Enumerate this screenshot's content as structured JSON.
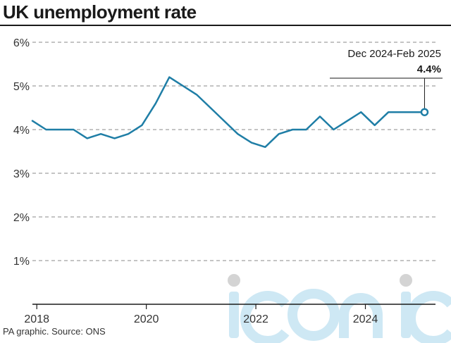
{
  "header": {
    "title": "UK unemployment rate"
  },
  "footer": {
    "source": "PA graphic. Source: ONS"
  },
  "annotation": {
    "period": "Dec 2024-Feb 2025",
    "value": "4.4%"
  },
  "watermark": {
    "text": "iconic"
  },
  "colors": {
    "line": "#1f7ea6",
    "grid": "#8a8a8a",
    "text": "#333333",
    "axis": "#1a1a1a",
    "watermark": "#c9e6f3",
    "watermark_dot": "#d0d0d0"
  },
  "chart_data": {
    "type": "line",
    "title": "UK unemployment rate",
    "xlabel": "",
    "ylabel": "",
    "xlim": [
      2017.92,
      2025.1
    ],
    "ylim": [
      0,
      6
    ],
    "y_ticks": [
      1,
      2,
      3,
      4,
      5,
      6
    ],
    "y_tick_labels": [
      "1%",
      "2%",
      "3%",
      "4%",
      "5%",
      "6%"
    ],
    "x_ticks": [
      2018,
      2020,
      2022,
      2024
    ],
    "x_tick_labels": [
      "2018",
      "2020",
      "2022",
      "2024"
    ],
    "grid": "horizontal dashed",
    "series": [
      {
        "x": [
          2017.92,
          2018.17,
          2018.42,
          2018.67,
          2018.92,
          2019.17,
          2019.42,
          2019.67,
          2019.92,
          2020.17,
          2020.42,
          2020.67,
          2020.92,
          2021.17,
          2021.42,
          2021.67,
          2021.92,
          2022.17,
          2022.42,
          2022.67,
          2022.92,
          2023.17,
          2023.42,
          2023.67,
          2023.92,
          2024.17,
          2024.42,
          2024.67,
          2024.92,
          2025.08
        ],
        "y": [
          4.2,
          4.0,
          4.0,
          4.0,
          3.8,
          3.9,
          3.8,
          3.9,
          4.1,
          4.6,
          5.2,
          5.0,
          4.8,
          4.5,
          4.2,
          3.9,
          3.7,
          3.6,
          3.9,
          4.0,
          4.0,
          4.3,
          4.0,
          4.2,
          4.4,
          4.1,
          4.4,
          4.4,
          4.4,
          4.4
        ]
      }
    ]
  }
}
